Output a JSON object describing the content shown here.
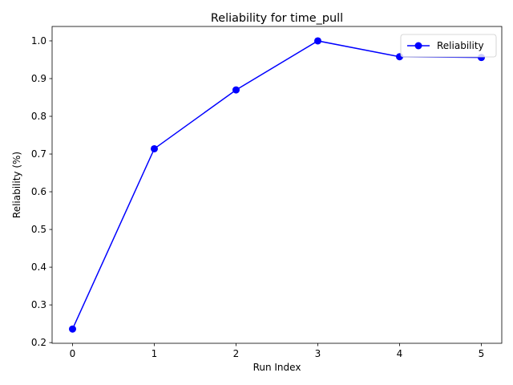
{
  "chart_data": {
    "type": "line",
    "title": "Reliability for time_pull",
    "xlabel": "Run Index",
    "ylabel": "Reliability (%)",
    "x": [
      0,
      1,
      2,
      3,
      4,
      5
    ],
    "series": [
      {
        "name": "Reliability",
        "values": [
          0.236,
          0.714,
          0.87,
          1.0,
          0.958,
          0.956
        ],
        "color": "#0000ff",
        "marker": "circle"
      }
    ],
    "xlim": [
      -0.25,
      5.25
    ],
    "ylim": [
      0.1982,
      1.0382
    ],
    "xticks": [
      "0",
      "1",
      "2",
      "3",
      "4",
      "5"
    ],
    "yticks": [
      "0.2",
      "0.3",
      "0.4",
      "0.5",
      "0.6",
      "0.7",
      "0.8",
      "0.9",
      "1.0"
    ],
    "grid": false,
    "legend": "top-right"
  }
}
